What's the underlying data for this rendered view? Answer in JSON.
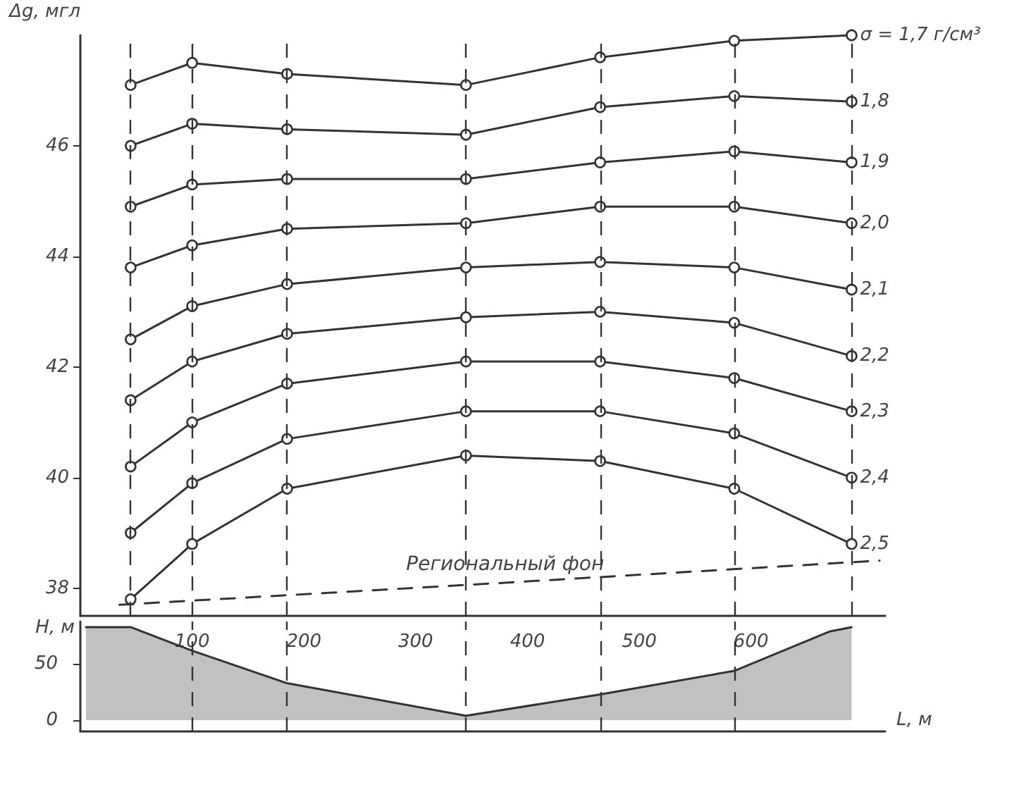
{
  "chart_data": [
    {
      "type": "line",
      "ylabel": "Δg, мгл",
      "x": [
        45,
        100,
        185,
        345,
        465,
        585,
        690
      ],
      "xlim": [
        0,
        720
      ],
      "tick_labels": "y",
      "ylim": [
        37.5,
        48
      ],
      "yticks": [
        38,
        40,
        42,
        44,
        46
      ],
      "marker": "circle",
      "line_style": "solid",
      "series": [
        {
          "name": "σ = 1,7 г/см³",
          "color": "#333333",
          "values": [
            47.1,
            47.5,
            47.3,
            47.1,
            47.6,
            47.9,
            48.0
          ]
        },
        {
          "name": "1,8",
          "color": "#333333",
          "values": [
            46.0,
            46.4,
            46.3,
            46.2,
            46.7,
            46.9,
            46.8
          ]
        },
        {
          "name": "1,9",
          "color": "#333333",
          "values": [
            44.9,
            45.3,
            45.4,
            45.4,
            45.7,
            45.9,
            45.7
          ]
        },
        {
          "name": "2,0",
          "color": "#333333",
          "values": [
            43.8,
            44.2,
            44.5,
            44.6,
            44.9,
            44.9,
            44.6
          ]
        },
        {
          "name": "2,1",
          "color": "#333333",
          "values": [
            42.5,
            43.1,
            43.5,
            43.8,
            43.9,
            43.8,
            43.4
          ]
        },
        {
          "name": "2,2",
          "color": "#333333",
          "values": [
            41.4,
            42.1,
            42.6,
            42.9,
            43.0,
            42.8,
            42.2
          ]
        },
        {
          "name": "2,3",
          "color": "#333333",
          "values": [
            40.2,
            41.0,
            41.7,
            42.1,
            42.1,
            41.8,
            41.2
          ]
        },
        {
          "name": "2,4",
          "color": "#333333",
          "values": [
            39.0,
            39.9,
            40.7,
            41.2,
            41.2,
            40.8,
            40.0
          ]
        },
        {
          "name": "2,5",
          "color": "#333333",
          "values": [
            37.8,
            38.8,
            39.8,
            40.4,
            40.3,
            39.8,
            38.8
          ]
        },
        {
          "name": "Региональный фон",
          "color": "#333333",
          "marker": "none",
          "line_style": "dashed",
          "x": [
            35,
            380,
            715
          ],
          "values": [
            37.7,
            38.1,
            38.5
          ]
        }
      ],
      "ref_lines": [
        {
          "axis": "x",
          "value": 45,
          "line_style": "dashed",
          "color": "#333333"
        },
        {
          "axis": "x",
          "value": 100,
          "line_style": "dashed",
          "color": "#333333"
        },
        {
          "axis": "x",
          "value": 185,
          "line_style": "dashed",
          "color": "#333333"
        },
        {
          "axis": "x",
          "value": 345,
          "line_style": "dashed",
          "color": "#333333"
        },
        {
          "axis": "x",
          "value": 465,
          "line_style": "dashed",
          "color": "#333333"
        },
        {
          "axis": "x",
          "value": 585,
          "line_style": "dashed",
          "color": "#333333"
        },
        {
          "axis": "x",
          "value": 690,
          "line_style": "dashed",
          "color": "#333333"
        }
      ]
    },
    {
      "type": "area",
      "xlabel": "L, м",
      "ylabel": "H, м",
      "x": [
        5,
        45,
        100,
        185,
        345,
        465,
        585,
        670,
        690
      ],
      "values": [
        83,
        83,
        62,
        33,
        4,
        23,
        44,
        79,
        83
      ],
      "color": "#333333",
      "xlim": [
        0,
        720
      ],
      "xticks": [
        100,
        200,
        300,
        400,
        500,
        600
      ],
      "ylim": [
        -10,
        88
      ],
      "yticks": [
        0,
        50
      ],
      "ref_lines": [
        {
          "axis": "x",
          "value": 100,
          "line_style": "dashed",
          "color": "#333333"
        },
        {
          "axis": "x",
          "value": 185,
          "line_style": "dashed",
          "color": "#333333"
        },
        {
          "axis": "x",
          "value": 345,
          "line_style": "dashed",
          "color": "#333333"
        },
        {
          "axis": "x",
          "value": 465,
          "line_style": "dashed",
          "color": "#333333"
        },
        {
          "axis": "x",
          "value": 585,
          "line_style": "dashed",
          "color": "#333333"
        }
      ]
    }
  ]
}
